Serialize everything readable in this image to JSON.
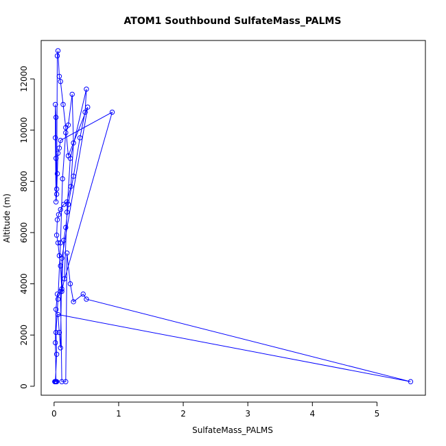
{
  "chart_data": {
    "type": "line",
    "title": "ATOM1 Southbound SulfateMass_PALMS",
    "xlabel": "SulfateMass_PALMS",
    "ylabel": "Altitude (m)",
    "xlim": [
      -0.2,
      5.75
    ],
    "ylim": [
      -350,
      13500
    ],
    "x_ticks": [
      0,
      1,
      2,
      3,
      4,
      5
    ],
    "y_ticks": [
      0,
      2000,
      4000,
      6000,
      8000,
      10000,
      12000
    ],
    "x_tick_labels": [
      "0",
      "1",
      "2",
      "3",
      "4",
      "5"
    ],
    "y_tick_labels": [
      "0",
      "2000",
      "4000",
      "6000",
      "8000",
      "10000",
      "12000"
    ],
    "grid": false,
    "legend": "none",
    "series": [
      {
        "color": "#0000ff",
        "marker": "open-circle",
        "x": [
          0.02,
          0.04,
          0.03,
          0.06,
          0.1,
          0.13,
          0.18,
          0.22,
          0.28,
          0.3,
          0.26,
          0.2,
          0.15,
          0.1,
          0.07,
          0.05,
          0.04,
          0.06,
          0.08,
          0.1,
          0.12,
          0.16,
          0.2,
          0.25,
          0.5,
          0.48,
          0.4,
          0.3,
          0.22,
          0.18,
          0.15,
          0.12,
          0.9,
          0.1,
          0.08,
          0.06,
          0.05,
          0.04,
          0.03,
          0.02,
          0.02,
          0.03,
          0.03,
          0.04,
          0.05,
          0.06,
          0.08,
          0.1,
          0.14,
          0.18,
          0.22,
          0.52,
          0.12,
          0.1,
          0.08,
          0.06,
          5.52,
          0.5,
          0.45,
          0.3,
          0.25,
          0.2,
          0.18,
          0.12,
          0.1,
          0.05,
          0.03,
          0.02,
          0.03,
          0.04,
          0.02,
          0.01
        ],
        "y": [
          180,
          1250,
          2100,
          3400,
          5600,
          8100,
          9900,
          10200,
          11400,
          9500,
          7800,
          7200,
          7100,
          6900,
          6700,
          6500,
          5900,
          5600,
          5100,
          4700,
          3700,
          4200,
          6800,
          8900,
          11600,
          10700,
          9700,
          8200,
          7100,
          6200,
          5700,
          3800,
          10700,
          9600,
          9300,
          9100,
          8300,
          7500,
          7200,
          9700,
          11000,
          10500,
          8900,
          7700,
          12900,
          13100,
          12100,
          11900,
          11000,
          10100,
          9000,
          10900,
          5000,
          1500,
          2100,
          2800,
          180,
          3400,
          3600,
          3300,
          4000,
          5200,
          180,
          180,
          3700,
          3600,
          3000,
          1700,
          180,
          180,
          180,
          180
        ]
      }
    ]
  }
}
